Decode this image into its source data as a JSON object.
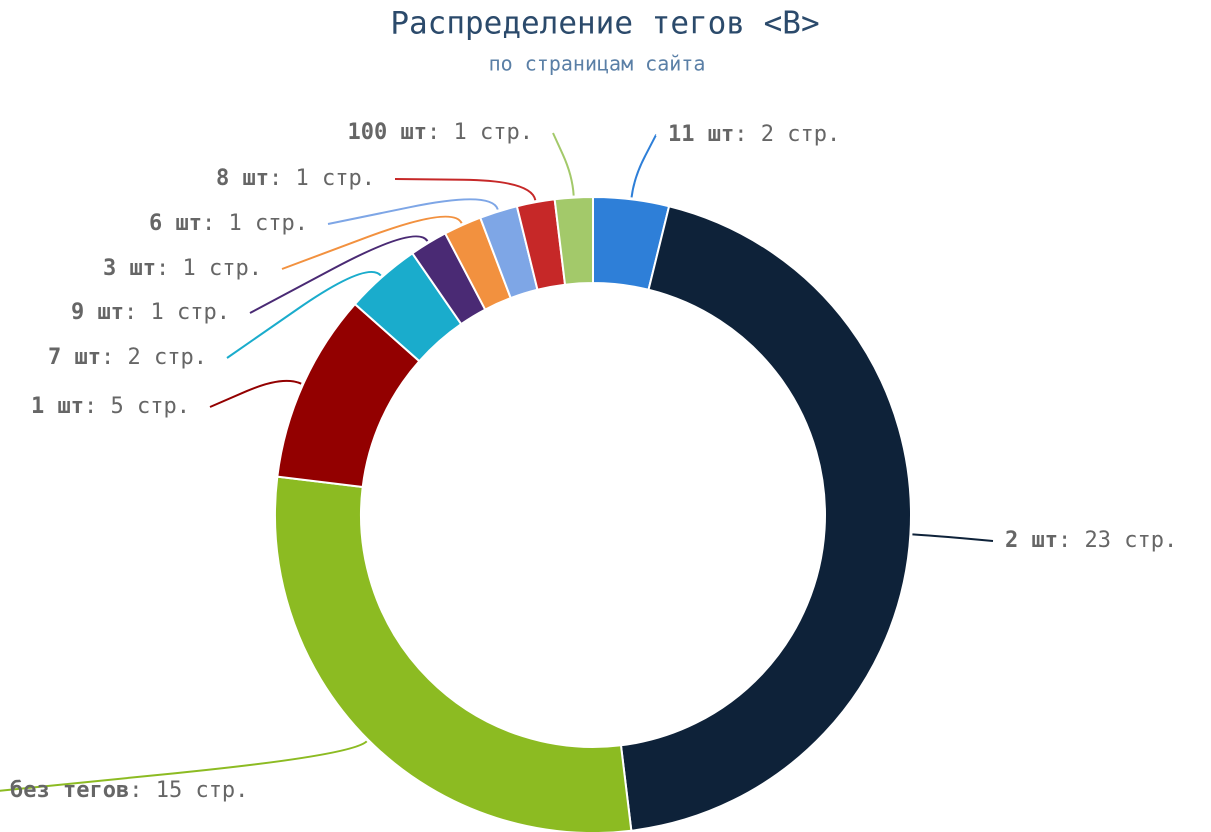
{
  "chart_data": {
    "type": "donut",
    "title": "Распределение тегов <B>",
    "subtitle": "по страницам сайта",
    "categories": [
      "11 шт",
      "2 шт",
      "без тегов",
      "1 шт",
      "7 шт",
      "9 шт",
      "3 шт",
      "6 шт",
      "8 шт",
      "100 шт"
    ],
    "values": [
      2,
      23,
      15,
      5,
      2,
      1,
      1,
      1,
      1,
      1
    ],
    "value_labels": [
      ": 2 стр.",
      ": 23 стр.",
      ": 15 стр.",
      ": 5 стр.",
      ": 2 стр.",
      ": 1 стр.",
      ": 1 стр.",
      ": 1 стр.",
      ": 1 стр.",
      ": 1 стр."
    ],
    "colors": [
      "#2e7fd8",
      "#0e2239",
      "#8cbb22",
      "#930000",
      "#1aaccc",
      "#4a2a74",
      "#f2913f",
      "#7ea6e6",
      "#c62828",
      "#a3c96a"
    ]
  }
}
